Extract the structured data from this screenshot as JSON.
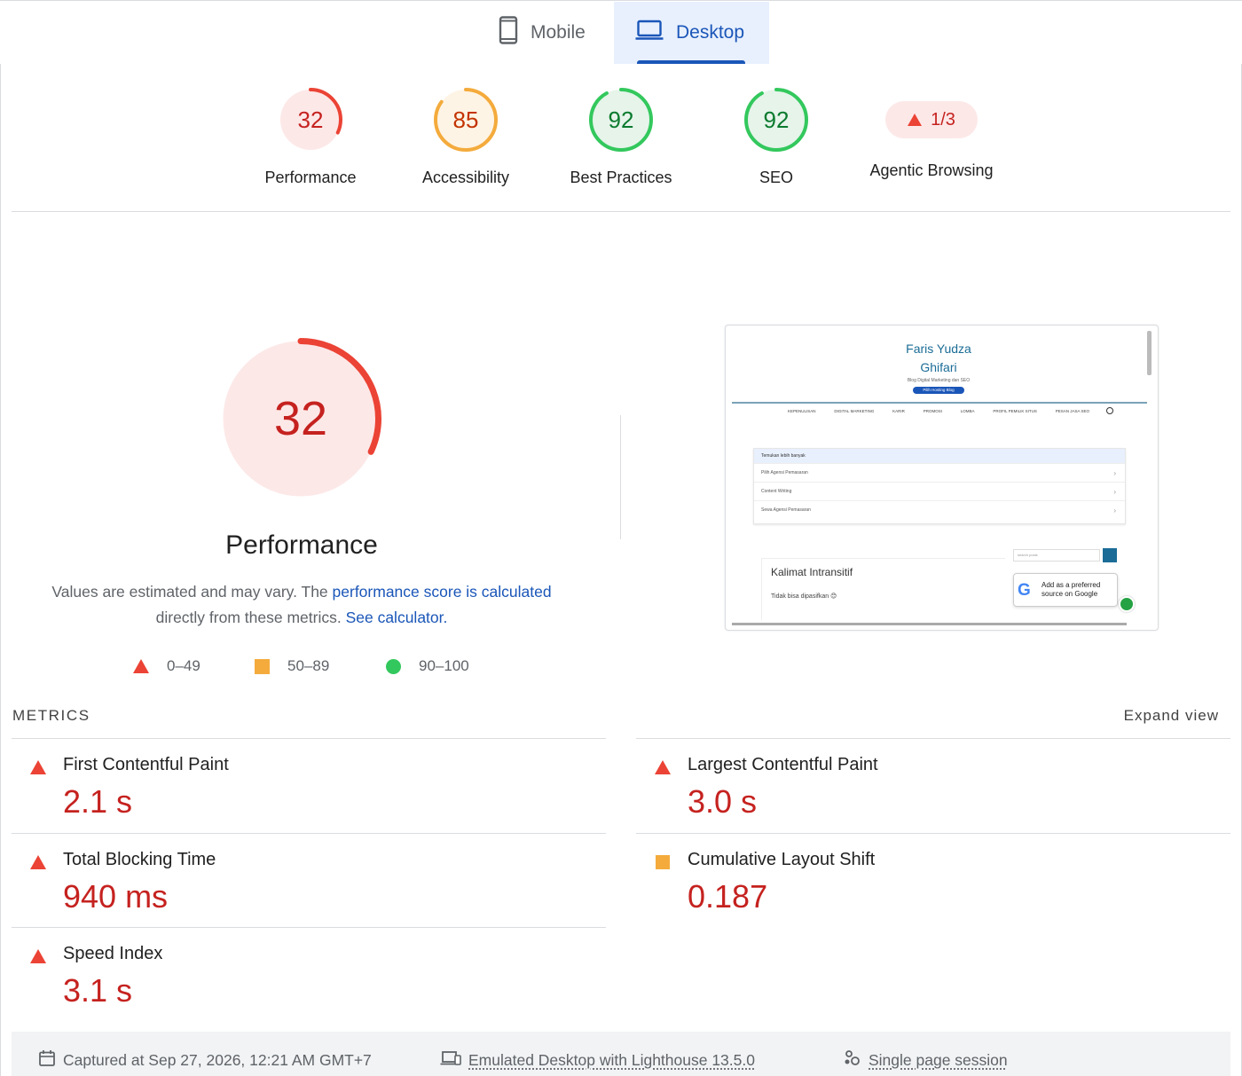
{
  "tabs": {
    "mobile": "Mobile",
    "desktop": "Desktop",
    "active": "desktop"
  },
  "categories": [
    {
      "label": "Performance",
      "score": "32",
      "fraction": 0.32,
      "color": "#eb4335",
      "bg": "#fde8e8",
      "text": "#c5221f"
    },
    {
      "label": "Accessibility",
      "score": "85",
      "fraction": 0.85,
      "color": "#f4ab3c",
      "bg": "#fef4e5",
      "text": "#c33300"
    },
    {
      "label": "Best Practices",
      "score": "92",
      "fraction": 0.92,
      "color": "#33c85d",
      "bg": "#e6f4ea",
      "text": "#0b7a2e"
    },
    {
      "label": "SEO",
      "score": "92",
      "fraction": 0.92,
      "color": "#33c85d",
      "bg": "#e6f4ea",
      "text": "#0b7a2e"
    }
  ],
  "agentic": {
    "label": "Agentic Browsing",
    "badge": "1/3"
  },
  "performance": {
    "score": "32",
    "fraction": 0.32,
    "title": "Performance",
    "desc_prefix": "Values are estimated and may vary. The ",
    "desc_link1": "performance score is calculated",
    "desc_mid": " directly from these metrics. ",
    "desc_link2": "See calculator."
  },
  "legend": {
    "fail": "0–49",
    "average": "50–89",
    "pass": "90–100"
  },
  "screenshot": {
    "title_line1": "Faris Yudza",
    "title_line2": "Ghifari",
    "subtitle": "Blog Digital Marketing dan SEO",
    "pill": "Pilih Hosting Blog",
    "nav": [
      "KEPENULISAN",
      "DIGITAL MARKETING",
      "KARIR",
      "PROMOSI",
      "LOMBA",
      "PROFIL PEMILIK SITUS",
      "PESAN JASA SEO"
    ],
    "box_head": "Temukan lebih banyak",
    "box_rows": [
      "Pilih Agensi Pemasaran",
      "Content Writing",
      "Sewa Agensi Pemasaran"
    ],
    "card_title": "Kalimat Intransitif",
    "card_sub": "Tidak bisa dipasifkan 😊",
    "search_placeholder": "search posts",
    "google_text": "Add as a preferred source on Google"
  },
  "metrics": {
    "heading": "METRICS",
    "expand": "Expand view",
    "items": [
      {
        "label": "First Contentful Paint",
        "value": "2.1 s",
        "status": "fail"
      },
      {
        "label": "Largest Contentful Paint",
        "value": "3.0 s",
        "status": "fail"
      },
      {
        "label": "Total Blocking Time",
        "value": "940 ms",
        "status": "fail"
      },
      {
        "label": "Cumulative Layout Shift",
        "value": "0.187",
        "status": "average"
      },
      {
        "label": "Speed Index",
        "value": "3.1 s",
        "status": "fail"
      }
    ]
  },
  "footer": {
    "captured": "Captured at Sep 27, 2026, 12:21 AM GMT+7",
    "emulated": "Emulated Desktop with Lighthouse 13.5.0",
    "session": "Single page session"
  }
}
